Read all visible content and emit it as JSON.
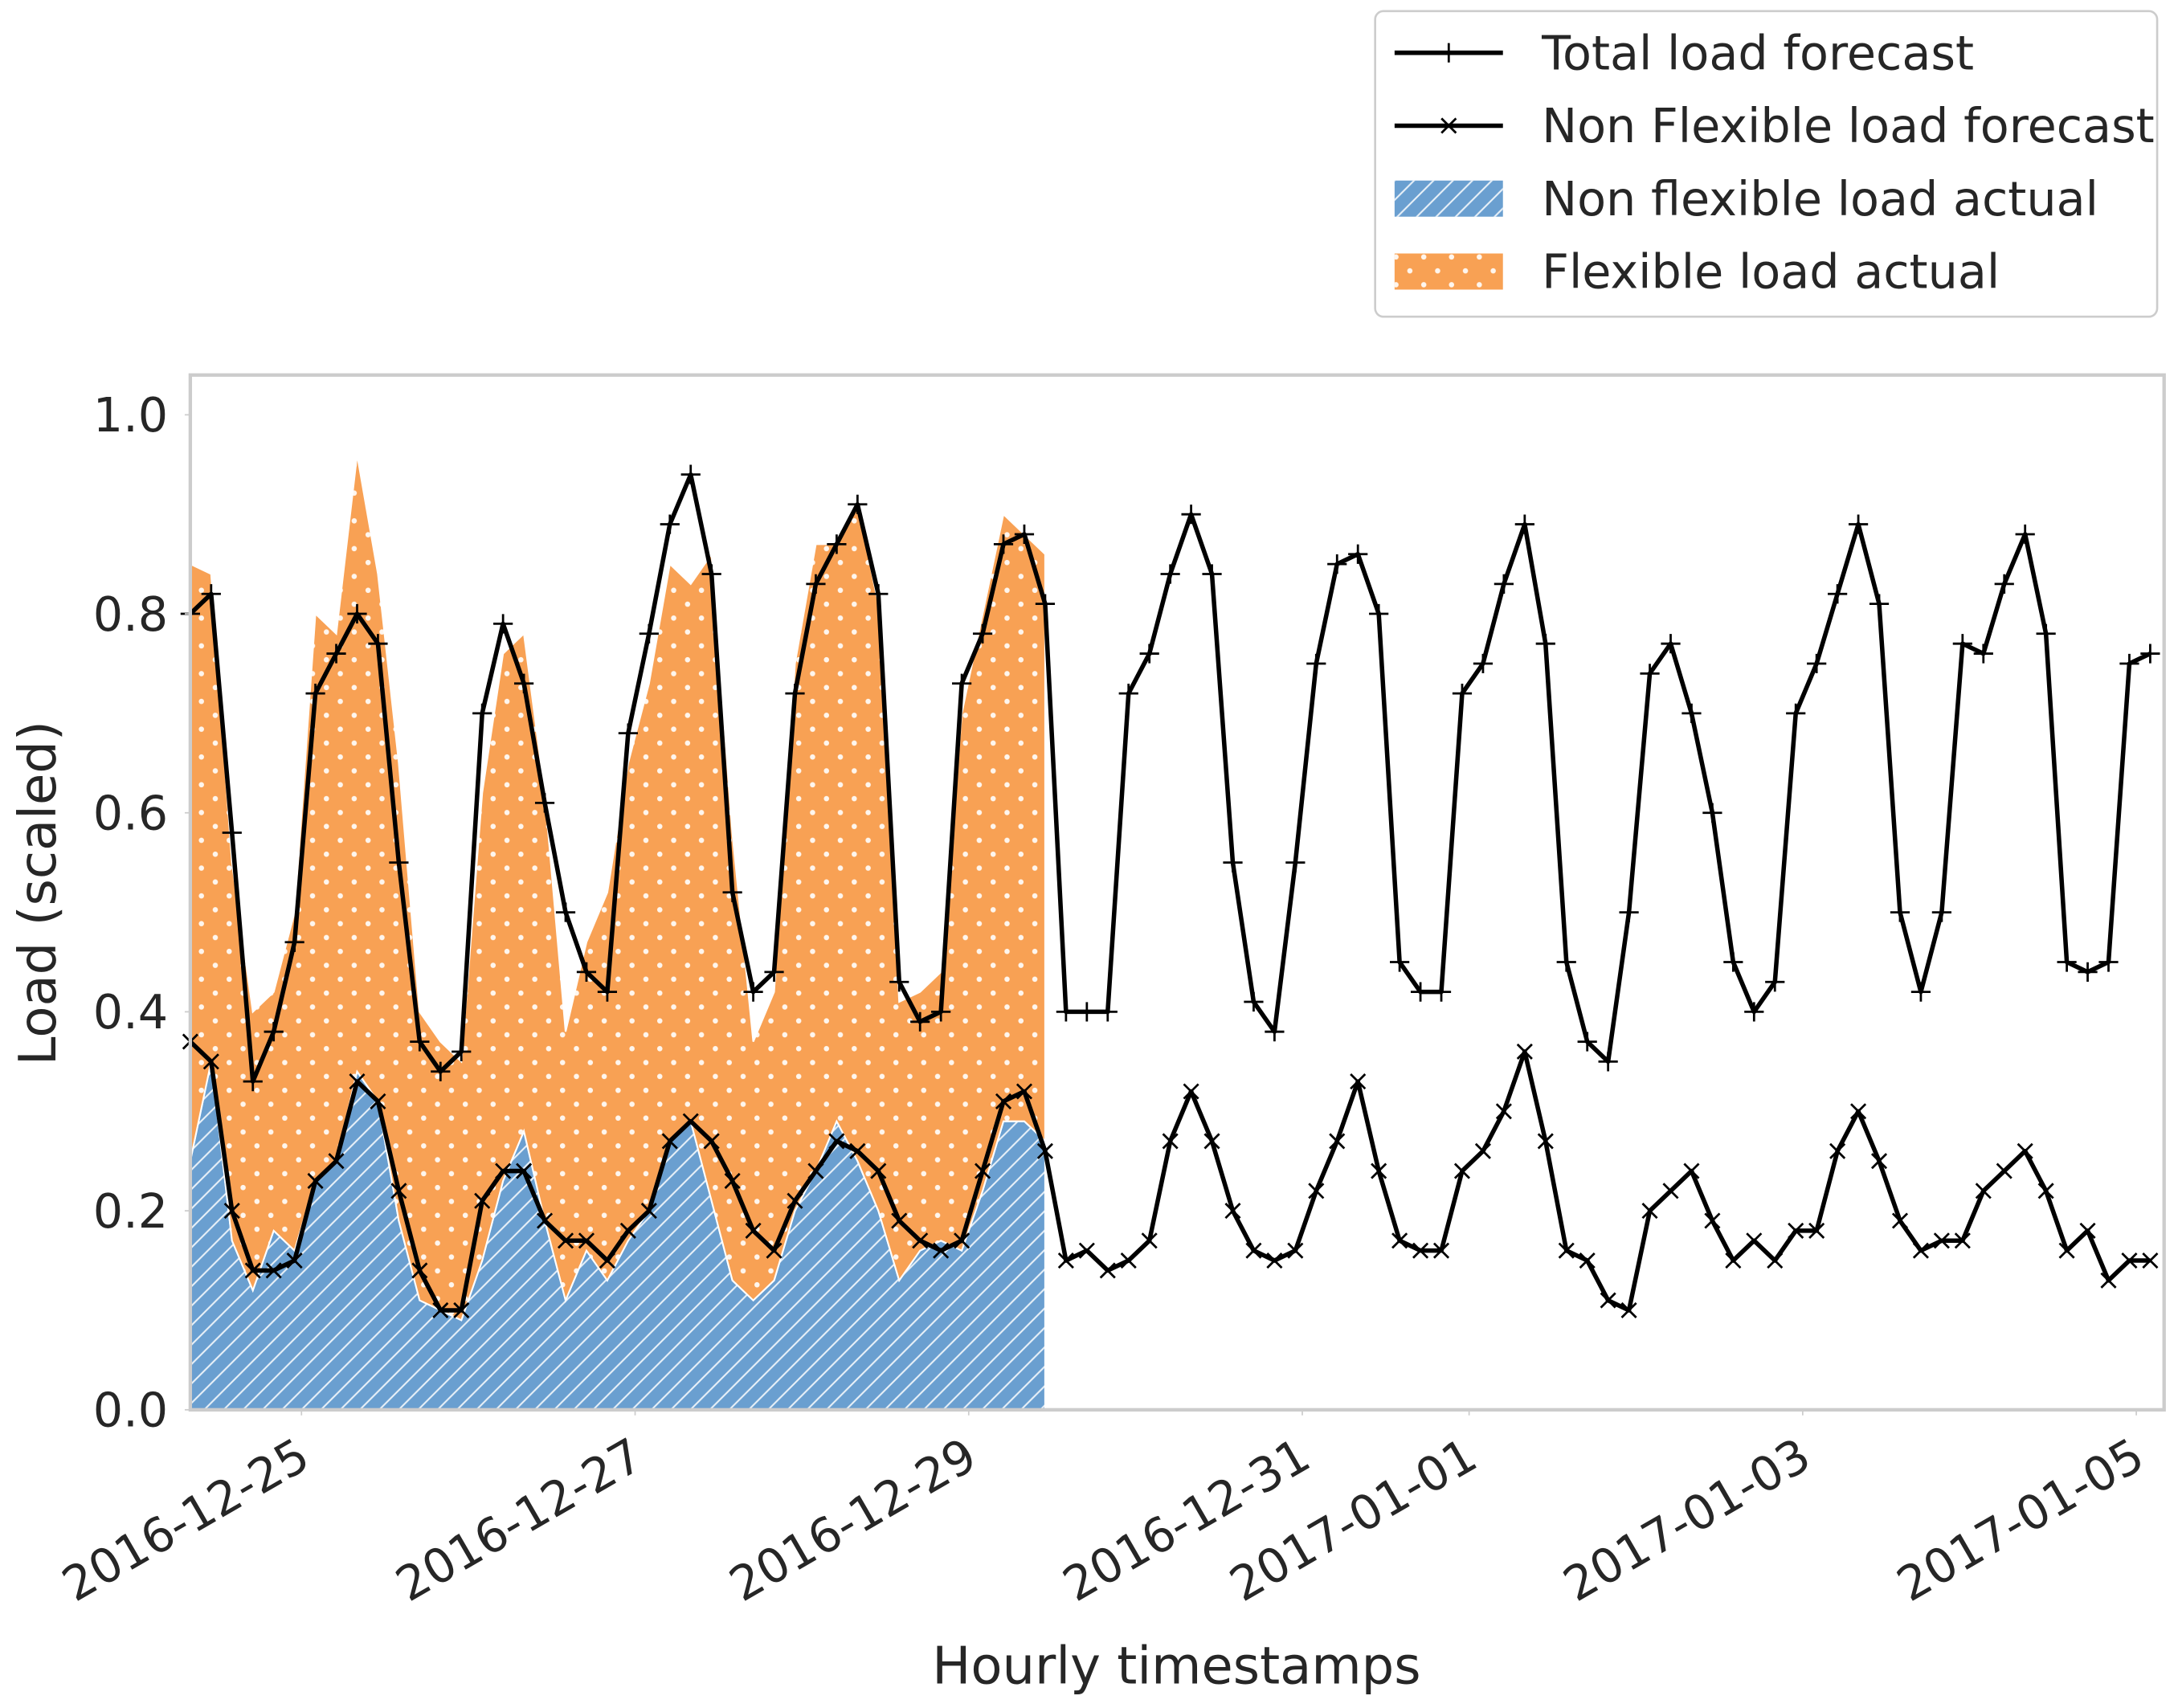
{
  "chart_data": {
    "type": "line",
    "xlabel": "Hourly timestamps",
    "ylabel": "Load (scaled)",
    "legend": "upper right",
    "grid": false,
    "xlim": [
      "2016-12-24T08:00",
      "2017-01-05T04:00"
    ],
    "xticks": [
      "2016-12-25",
      "2016-12-27",
      "2016-12-29",
      "2016-12-31",
      "2017-01-01",
      "2017-01-03",
      "2017-01-05"
    ],
    "ylim": [
      0,
      1.04
    ],
    "yticks": [
      {
        "value": 0,
        "label": "0.0"
      },
      0.2,
      0.4,
      0.6,
      0.8,
      {
        "value": 1,
        "label": "1.0"
      }
    ],
    "x": [
      "2016-12-24T08:00",
      "2016-12-24T11:00",
      "2016-12-24T14:00",
      "2016-12-24T17:00",
      "2016-12-24T20:00",
      "2016-12-24T23:00",
      "2016-12-25T02:00",
      "2016-12-25T05:00",
      "2016-12-25T08:00",
      "2016-12-25T11:00",
      "2016-12-25T14:00",
      "2016-12-25T17:00",
      "2016-12-25T20:00",
      "2016-12-25T23:00",
      "2016-12-26T02:00",
      "2016-12-26T05:00",
      "2016-12-26T08:00",
      "2016-12-26T11:00",
      "2016-12-26T14:00",
      "2016-12-26T17:00",
      "2016-12-26T20:00",
      "2016-12-26T23:00",
      "2016-12-27T02:00",
      "2016-12-27T05:00",
      "2016-12-27T08:00",
      "2016-12-27T11:00",
      "2016-12-27T14:00",
      "2016-12-27T17:00",
      "2016-12-27T20:00",
      "2016-12-27T23:00",
      "2016-12-28T02:00",
      "2016-12-28T05:00",
      "2016-12-28T08:00",
      "2016-12-28T11:00",
      "2016-12-28T14:00",
      "2016-12-28T17:00",
      "2016-12-28T20:00",
      "2016-12-28T23:00",
      "2016-12-29T02:00",
      "2016-12-29T05:00",
      "2016-12-29T08:00",
      "2016-12-29T11:00",
      "2016-12-29T14:00",
      "2016-12-29T17:00",
      "2016-12-29T20:00",
      "2016-12-29T23:00",
      "2016-12-30T02:00",
      "2016-12-30T05:00",
      "2016-12-30T08:00",
      "2016-12-30T11:00",
      "2016-12-30T14:00",
      "2016-12-30T17:00",
      "2016-12-30T20:00",
      "2016-12-30T23:00",
      "2016-12-31T02:00",
      "2016-12-31T05:00",
      "2016-12-31T08:00",
      "2016-12-31T11:00",
      "2016-12-31T14:00",
      "2016-12-31T17:00",
      "2016-12-31T20:00",
      "2016-12-31T23:00",
      "2017-01-01T02:00",
      "2017-01-01T05:00",
      "2017-01-01T08:00",
      "2017-01-01T11:00",
      "2017-01-01T14:00",
      "2017-01-01T17:00",
      "2017-01-01T20:00",
      "2017-01-01T23:00",
      "2017-01-02T02:00",
      "2017-01-02T05:00",
      "2017-01-02T08:00",
      "2017-01-02T11:00",
      "2017-01-02T14:00",
      "2017-01-02T17:00",
      "2017-01-02T20:00",
      "2017-01-02T23:00",
      "2017-01-03T02:00",
      "2017-01-03T05:00",
      "2017-01-03T08:00",
      "2017-01-03T11:00",
      "2017-01-03T14:00",
      "2017-01-03T17:00",
      "2017-01-03T20:00",
      "2017-01-03T23:00",
      "2017-01-04T02:00",
      "2017-01-04T05:00",
      "2017-01-04T08:00",
      "2017-01-04T11:00",
      "2017-01-04T14:00",
      "2017-01-04T17:00",
      "2017-01-04T20:00",
      "2017-01-04T23:00",
      "2017-01-05T02:00"
    ],
    "series": [
      {
        "name": "Total load forecast",
        "style": "line",
        "marker": "+",
        "color": "#000000",
        "values": [
          0.8,
          0.82,
          0.58,
          0.33,
          0.38,
          0.47,
          0.72,
          0.76,
          0.8,
          0.77,
          0.55,
          0.37,
          0.34,
          0.36,
          0.7,
          0.79,
          0.73,
          0.61,
          0.5,
          0.44,
          0.42,
          0.68,
          0.78,
          0.89,
          0.94,
          0.84,
          0.52,
          0.42,
          0.44,
          0.72,
          0.83,
          0.87,
          0.91,
          0.82,
          0.43,
          0.39,
          0.4,
          0.73,
          0.78,
          0.87,
          0.88,
          0.81,
          0.4,
          0.4,
          0.4,
          0.72,
          0.76,
          0.84,
          0.9,
          0.84,
          0.55,
          0.41,
          0.38,
          0.55,
          0.75,
          0.85,
          0.86,
          0.8,
          0.45,
          0.42,
          0.42,
          0.72,
          0.75,
          0.83,
          0.89,
          0.77,
          0.45,
          0.37,
          0.35,
          0.5,
          0.74,
          0.77,
          0.7,
          0.6,
          0.45,
          0.4,
          0.43,
          0.7,
          0.75,
          0.82,
          0.89,
          0.81,
          0.5,
          0.42,
          0.5,
          0.77,
          0.76,
          0.83,
          0.88,
          0.78,
          0.45,
          0.44,
          0.45,
          0.75,
          0.76
        ]
      },
      {
        "name": "Non Flexible load forecast",
        "style": "line",
        "marker": "x",
        "color": "#000000",
        "values": [
          0.37,
          0.35,
          0.2,
          0.14,
          0.14,
          0.15,
          0.23,
          0.25,
          0.33,
          0.31,
          0.22,
          0.14,
          0.1,
          0.1,
          0.21,
          0.24,
          0.24,
          0.19,
          0.17,
          0.17,
          0.15,
          0.18,
          0.2,
          0.27,
          0.29,
          0.27,
          0.23,
          0.18,
          0.16,
          0.21,
          0.24,
          0.27,
          0.26,
          0.24,
          0.19,
          0.17,
          0.16,
          0.17,
          0.24,
          0.31,
          0.32,
          0.26,
          0.15,
          0.16,
          0.14,
          0.15,
          0.17,
          0.27,
          0.32,
          0.27,
          0.2,
          0.16,
          0.15,
          0.16,
          0.22,
          0.27,
          0.33,
          0.24,
          0.17,
          0.16,
          0.16,
          0.24,
          0.26,
          0.3,
          0.36,
          0.27,
          0.16,
          0.15,
          0.11,
          0.1,
          0.2,
          0.22,
          0.24,
          0.19,
          0.15,
          0.17,
          0.15,
          0.18,
          0.18,
          0.26,
          0.3,
          0.25,
          0.19,
          0.16,
          0.17,
          0.17,
          0.22,
          0.24,
          0.26,
          0.22,
          0.16,
          0.18,
          0.13,
          0.15,
          0.15
        ]
      },
      {
        "name": "Non flexible load actual",
        "style": "stacked-area",
        "hatch": "/",
        "color": "#6a9fd0",
        "values": [
          0.25,
          0.35,
          0.17,
          0.12,
          0.18,
          0.16,
          0.23,
          0.25,
          0.34,
          0.31,
          0.19,
          0.11,
          0.1,
          0.09,
          0.15,
          0.23,
          0.28,
          0.19,
          0.11,
          0.16,
          0.13,
          0.17,
          0.2,
          0.27,
          0.29,
          0.21,
          0.13,
          0.11,
          0.13,
          0.2,
          0.24,
          0.29,
          0.25,
          0.2,
          0.13,
          0.16,
          0.17,
          0.16,
          0.22,
          0.29,
          0.29,
          0.27,
          null,
          null,
          null,
          null,
          null,
          null,
          null,
          null,
          null,
          null,
          null,
          null,
          null,
          null,
          null,
          null,
          null,
          null,
          null,
          null,
          null,
          null,
          null,
          null,
          null,
          null,
          null,
          null,
          null,
          null,
          null,
          null,
          null,
          null,
          null,
          null,
          null,
          null,
          null,
          null,
          null,
          null,
          null,
          null,
          null,
          null,
          null,
          null,
          null,
          null,
          null,
          null,
          null
        ]
      },
      {
        "name": "Flexible load actual",
        "style": "stacked-area",
        "hatch": ".",
        "color": "#f8a154",
        "values": [
          0.6,
          0.49,
          0.38,
          0.28,
          0.24,
          0.34,
          0.57,
          0.53,
          0.62,
          0.53,
          0.46,
          0.29,
          0.27,
          0.26,
          0.47,
          0.53,
          0.5,
          0.43,
          0.27,
          0.31,
          0.39,
          0.48,
          0.53,
          0.58,
          0.54,
          0.65,
          0.45,
          0.26,
          0.29,
          0.55,
          0.63,
          0.58,
          0.66,
          0.61,
          0.28,
          0.26,
          0.27,
          0.54,
          0.58,
          0.61,
          0.59,
          0.59,
          null,
          null,
          null,
          null,
          null,
          null,
          null,
          null,
          null,
          null,
          null,
          null,
          null,
          null,
          null,
          null,
          null,
          null,
          null,
          null,
          null,
          null,
          null,
          null,
          null,
          null,
          null,
          null,
          null,
          null,
          null,
          null,
          null,
          null,
          null,
          null,
          null,
          null,
          null,
          null,
          null,
          null,
          null,
          null,
          null,
          null,
          null,
          null,
          null,
          null,
          null,
          null,
          null
        ]
      }
    ]
  }
}
